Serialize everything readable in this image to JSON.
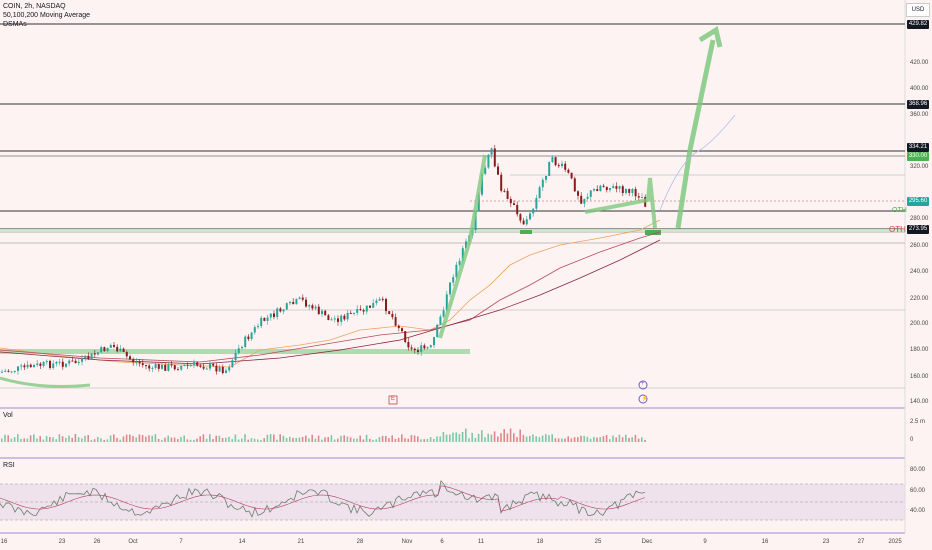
{
  "header": {
    "symbol": "COIN, 2h, NASDAQ",
    "indicator1": "50,100,200 Moving Average",
    "indicator2": "DSMAs"
  },
  "currency": "USD",
  "price_axis": [
    "420.00",
    "400.00",
    "360.00",
    "320.00",
    "280.00",
    "260.00",
    "240.00",
    "220.00",
    "200.00",
    "180.00",
    "160.00",
    "140.00"
  ],
  "price_tags": {
    "top": "429.82",
    "r1": "368.96",
    "r2": "334.21",
    "last": "330.00",
    "current": "295.60",
    "s1": "273.95"
  },
  "zone_labels": {
    "oth_upper": "OTH",
    "oth_lower": "OTH"
  },
  "volume": {
    "title": "Vol",
    "scale_top": "2.5 m",
    "scale_zero": "0"
  },
  "rsi": {
    "title": "RSI",
    "levels": [
      "80.00",
      "60.00",
      "40.00"
    ]
  },
  "date_axis": [
    "16",
    "23",
    "26",
    "Oct",
    "7",
    "14",
    "21",
    "28",
    "Nov",
    "6",
    "11",
    "18",
    "25",
    "Dec",
    "9",
    "16",
    "23",
    "27",
    "2025"
  ],
  "markers": {
    "earnings": "E",
    "dividend_top": "+",
    "dividend_bottom": "⚡"
  },
  "colors": {
    "background": "#fdf3f3",
    "up_candle": "#26a69a",
    "down_candle": "#8b1a1a",
    "ma50": "#f0a25c",
    "ma100": "#b84a5c",
    "ma200": "#8b2442",
    "arrow_green": "#7fc97f",
    "support_green": "#4caf50",
    "rsi_line": "#6b7e6b"
  }
}
